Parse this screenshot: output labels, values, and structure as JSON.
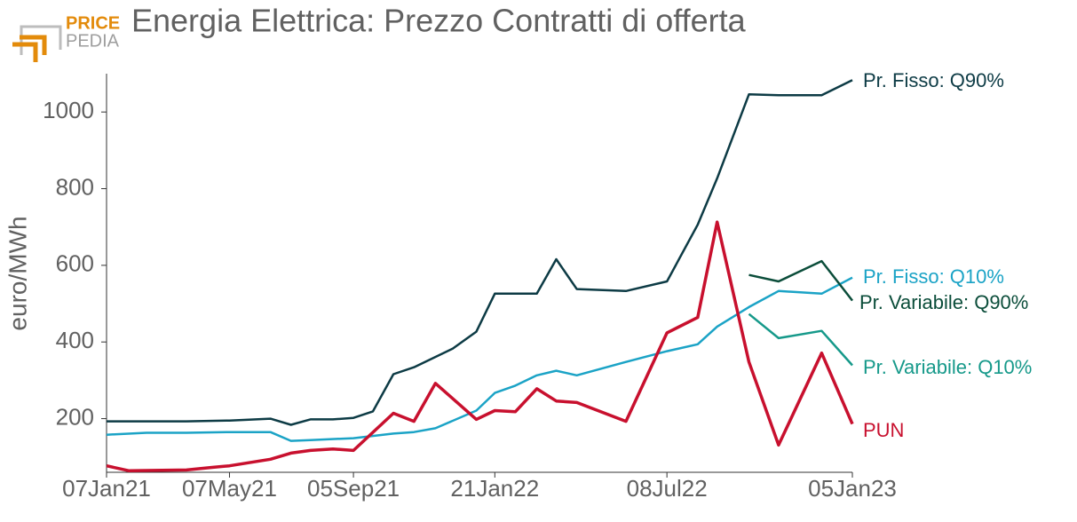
{
  "logo": {
    "top": "PRICE",
    "bottom": "PEDIA"
  },
  "chart_data": {
    "type": "line",
    "title": "Energia Elettrica: Prezzo Contratti di offerta",
    "y_label": "euro/MWh",
    "xlim": [
      "2021-01-07",
      "2023-01-05"
    ],
    "xticks": [
      {
        "value": "2021-01-07",
        "label": "07Jan21"
      },
      {
        "value": "2021-05-07",
        "label": "07May21"
      },
      {
        "value": "2021-09-05",
        "label": "05Sep21"
      },
      {
        "value": "2022-01-21",
        "label": "21Jan22"
      },
      {
        "value": "2022-07-08",
        "label": "08Jul22"
      },
      {
        "value": "2023-01-05",
        "label": "05Jan23"
      }
    ],
    "ylim": [
      60,
      1100
    ],
    "yticks": [
      200,
      400,
      600,
      800,
      1000
    ],
    "grid": false,
    "series": [
      {
        "name": "Pr. Fisso: Q90%",
        "color": "#0d3b45",
        "x": [
          "2021-01-07",
          "2021-02-15",
          "2021-03-26",
          "2021-05-07",
          "2021-06-16",
          "2021-07-06",
          "2021-07-25",
          "2021-08-16",
          "2021-09-05",
          "2021-09-24",
          "2021-10-14",
          "2021-11-03",
          "2021-12-11",
          "2022-01-03",
          "2022-01-21",
          "2022-02-10",
          "2022-03-03",
          "2022-03-22",
          "2022-04-11",
          "2022-05-29",
          "2022-07-08",
          "2022-08-07",
          "2022-08-26",
          "2022-09-26",
          "2022-10-25",
          "2022-12-06",
          "2023-01-05"
        ],
        "values": [
          193,
          193,
          193,
          195,
          200,
          184,
          198,
          198,
          202,
          219,
          316,
          334,
          383,
          427,
          526,
          526,
          526,
          616,
          538,
          533,
          558,
          706,
          827,
          1046,
          1044,
          1044,
          1083
        ]
      },
      {
        "name": "Pr. Fisso: Q10%",
        "color": "#1ba3c6",
        "x": [
          "2021-01-07",
          "2021-02-15",
          "2021-03-26",
          "2021-05-07",
          "2021-06-16",
          "2021-07-06",
          "2021-07-25",
          "2021-09-05",
          "2021-10-14",
          "2021-11-03",
          "2021-11-24",
          "2022-01-03",
          "2022-01-21",
          "2022-02-10",
          "2022-03-03",
          "2022-03-22",
          "2022-04-11",
          "2022-05-29",
          "2022-07-08",
          "2022-08-07",
          "2022-08-26",
          "2022-09-26",
          "2022-10-25",
          "2022-12-06",
          "2023-01-05"
        ],
        "values": [
          158,
          163,
          163,
          165,
          165,
          142,
          144,
          149,
          161,
          165,
          175,
          221,
          267,
          286,
          313,
          325,
          313,
          348,
          376,
          394,
          440,
          491,
          533,
          526,
          568
        ]
      },
      {
        "name": "Pr. Variabile: Q90%",
        "color": "#0b4d3a",
        "x": [
          "2022-09-26",
          "2022-10-25",
          "2022-12-06",
          "2023-01-05"
        ],
        "values": [
          575,
          558,
          611,
          508
        ]
      },
      {
        "name": "Pr. Variabile: Q10%",
        "color": "#16998a",
        "x": [
          "2022-09-26",
          "2022-10-25",
          "2022-12-06",
          "2023-01-05"
        ],
        "values": [
          473,
          410,
          429,
          339
        ]
      },
      {
        "name": "PUN",
        "color": "#c8102e",
        "x": [
          "2021-01-07",
          "2021-01-29",
          "2021-03-26",
          "2021-04-21",
          "2021-05-07",
          "2021-06-16",
          "2021-07-06",
          "2021-07-25",
          "2021-08-16",
          "2021-09-05",
          "2021-10-14",
          "2021-11-03",
          "2021-11-24",
          "2022-01-03",
          "2022-01-21",
          "2022-02-10",
          "2022-03-03",
          "2022-03-22",
          "2022-04-11",
          "2022-05-29",
          "2022-07-08",
          "2022-08-07",
          "2022-08-26",
          "2022-09-26",
          "2022-10-25",
          "2022-12-06",
          "2023-01-05"
        ],
        "values": [
          77,
          64,
          66,
          73,
          77,
          94,
          110,
          117,
          121,
          117,
          214,
          193,
          292,
          198,
          221,
          218,
          278,
          246,
          242,
          193,
          424,
          464,
          713,
          348,
          131,
          371,
          186
        ]
      }
    ]
  }
}
